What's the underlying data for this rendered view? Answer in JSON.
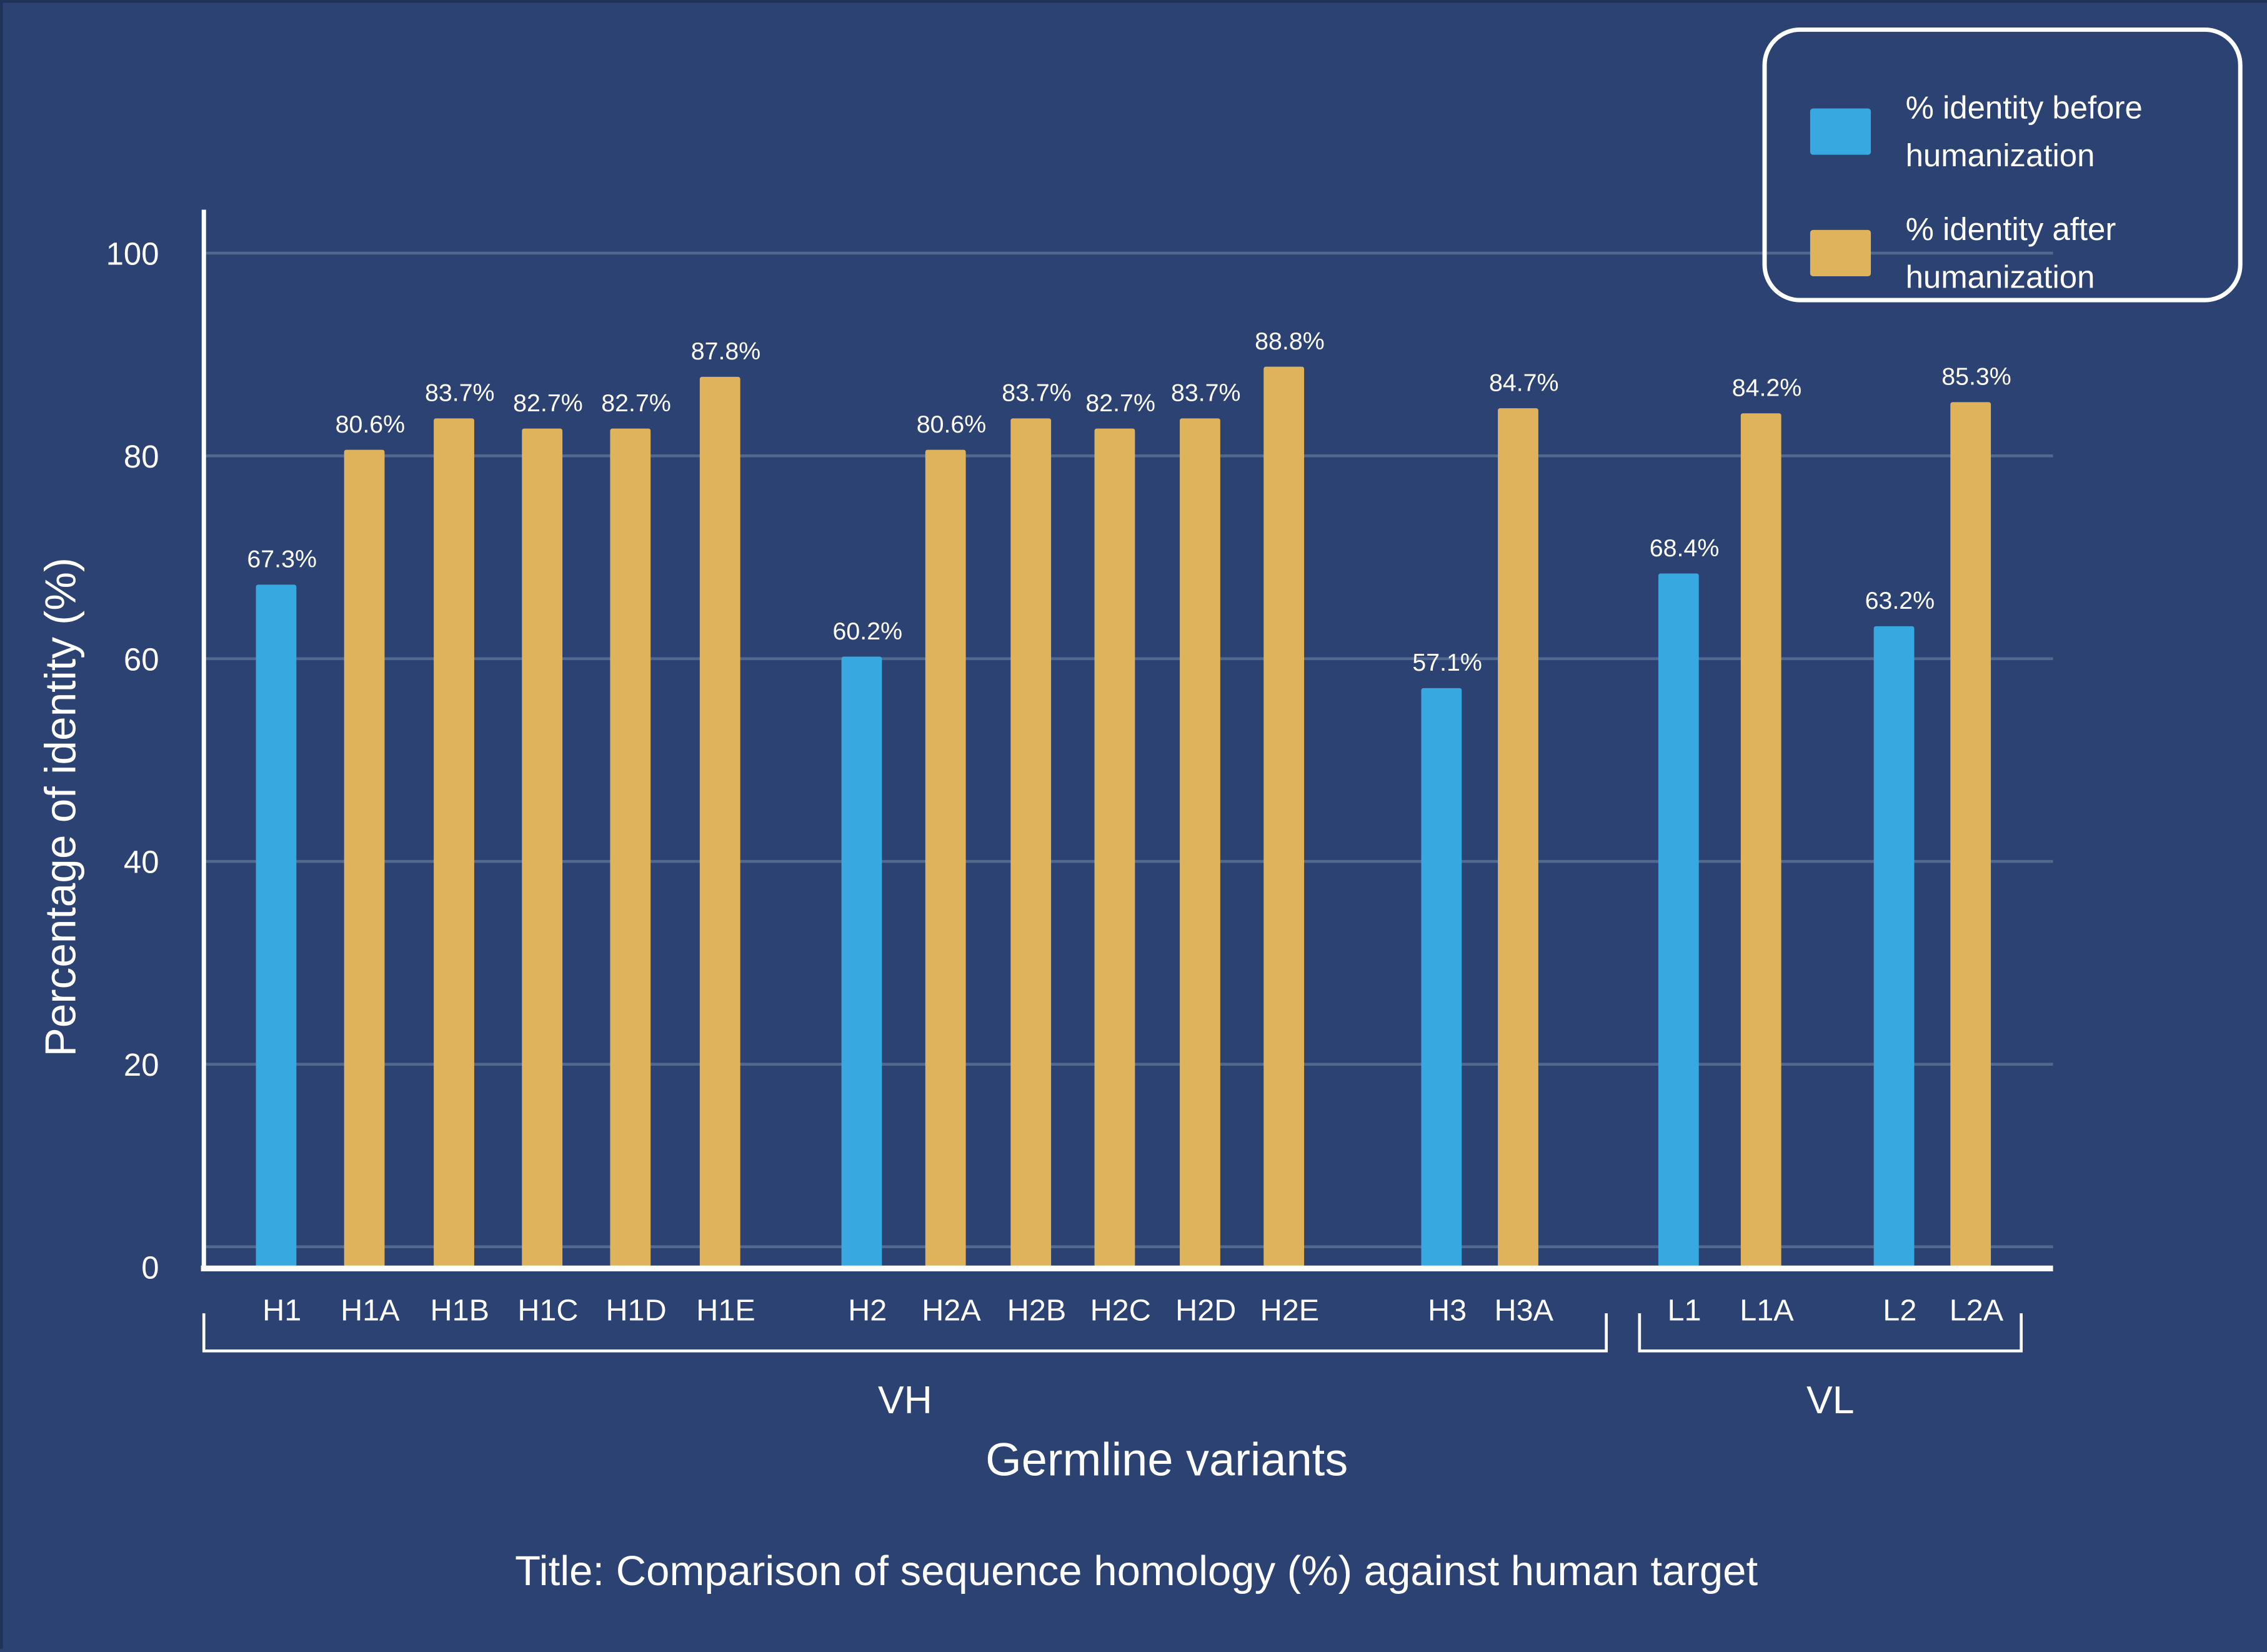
{
  "colors": {
    "background": "#2b4272",
    "before": "#38a8e0",
    "after": "#deb35b",
    "grid": "#52688f",
    "axis": "#ffffff",
    "text": "#ffffff"
  },
  "legend": {
    "items": [
      {
        "label": "% identity before humanization",
        "color": "#38a8e0"
      },
      {
        "label": "% identity after humanization",
        "color": "#deb35b"
      }
    ]
  },
  "chart_data": {
    "type": "bar",
    "title": "Title: Comparison of sequence homology (%) against human target",
    "xlabel": "Germline variants",
    "ylabel": "Percentage of identity (%)",
    "ylim": [
      0,
      100
    ],
    "yticks": [
      0,
      20,
      40,
      60,
      80,
      100
    ],
    "grid": true,
    "legend_position": "top-right",
    "categories": [
      "H1",
      "H1A",
      "H1B",
      "H1C",
      "H1D",
      "H1E",
      "H2",
      "H2A",
      "H2B",
      "H2C",
      "H2D",
      "H2E",
      "H3",
      "H3A",
      "L1",
      "L1A",
      "L2",
      "L2A"
    ],
    "series_of_category": [
      "before",
      "after",
      "after",
      "after",
      "after",
      "after",
      "before",
      "after",
      "after",
      "after",
      "after",
      "after",
      "before",
      "after",
      "before",
      "after",
      "before",
      "after"
    ],
    "values": [
      67.3,
      80.6,
      83.7,
      82.7,
      82.7,
      87.8,
      60.2,
      80.6,
      83.7,
      82.7,
      83.7,
      88.8,
      57.1,
      84.7,
      68.4,
      84.2,
      63.2,
      85.3
    ],
    "data_labels": [
      "67.3%",
      "80.6%",
      "83.7%",
      "82.7%",
      "82.7%",
      "87.8%",
      "60.2%",
      "80.6%",
      "83.7%",
      "82.7%",
      "83.7%",
      "88.8%",
      "57.1%",
      "84.7%",
      "68.4%",
      "84.2%",
      "63.2%",
      "85.3%"
    ],
    "groups": [
      {
        "label": "VH",
        "categories": [
          "H1",
          "H1A",
          "H1B",
          "H1C",
          "H1D",
          "H1E",
          "H2",
          "H2A",
          "H2B",
          "H2C",
          "H2D",
          "H2E",
          "H3",
          "H3A"
        ]
      },
      {
        "label": "VL",
        "categories": [
          "L1",
          "L1A",
          "L2",
          "L2A"
        ]
      }
    ]
  }
}
